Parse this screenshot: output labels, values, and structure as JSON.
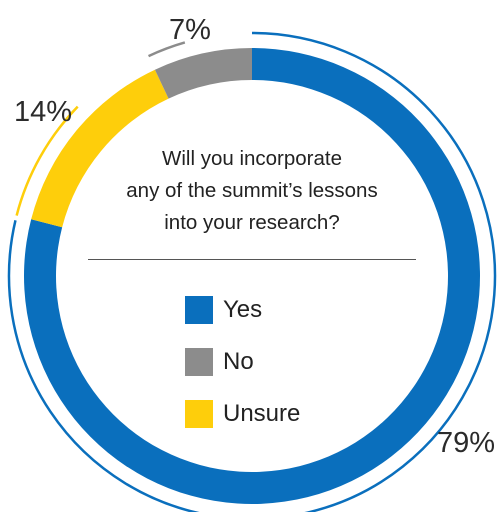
{
  "chart_data": {
    "type": "pie",
    "style": "donut",
    "title": "Will you incorporate any of the summit’s lessons into your research?",
    "title_lines": [
      "Will you incorporate",
      "any of the summit’s lessons",
      "into your research?"
    ],
    "categories": [
      "Yes",
      "No",
      "Unsure"
    ],
    "values": [
      79,
      7,
      14
    ],
    "value_labels": [
      "79%",
      "7%",
      "14%"
    ],
    "colors": [
      "#0a6fbd",
      "#8c8c8c",
      "#fece0b"
    ],
    "legend_position": "center"
  }
}
